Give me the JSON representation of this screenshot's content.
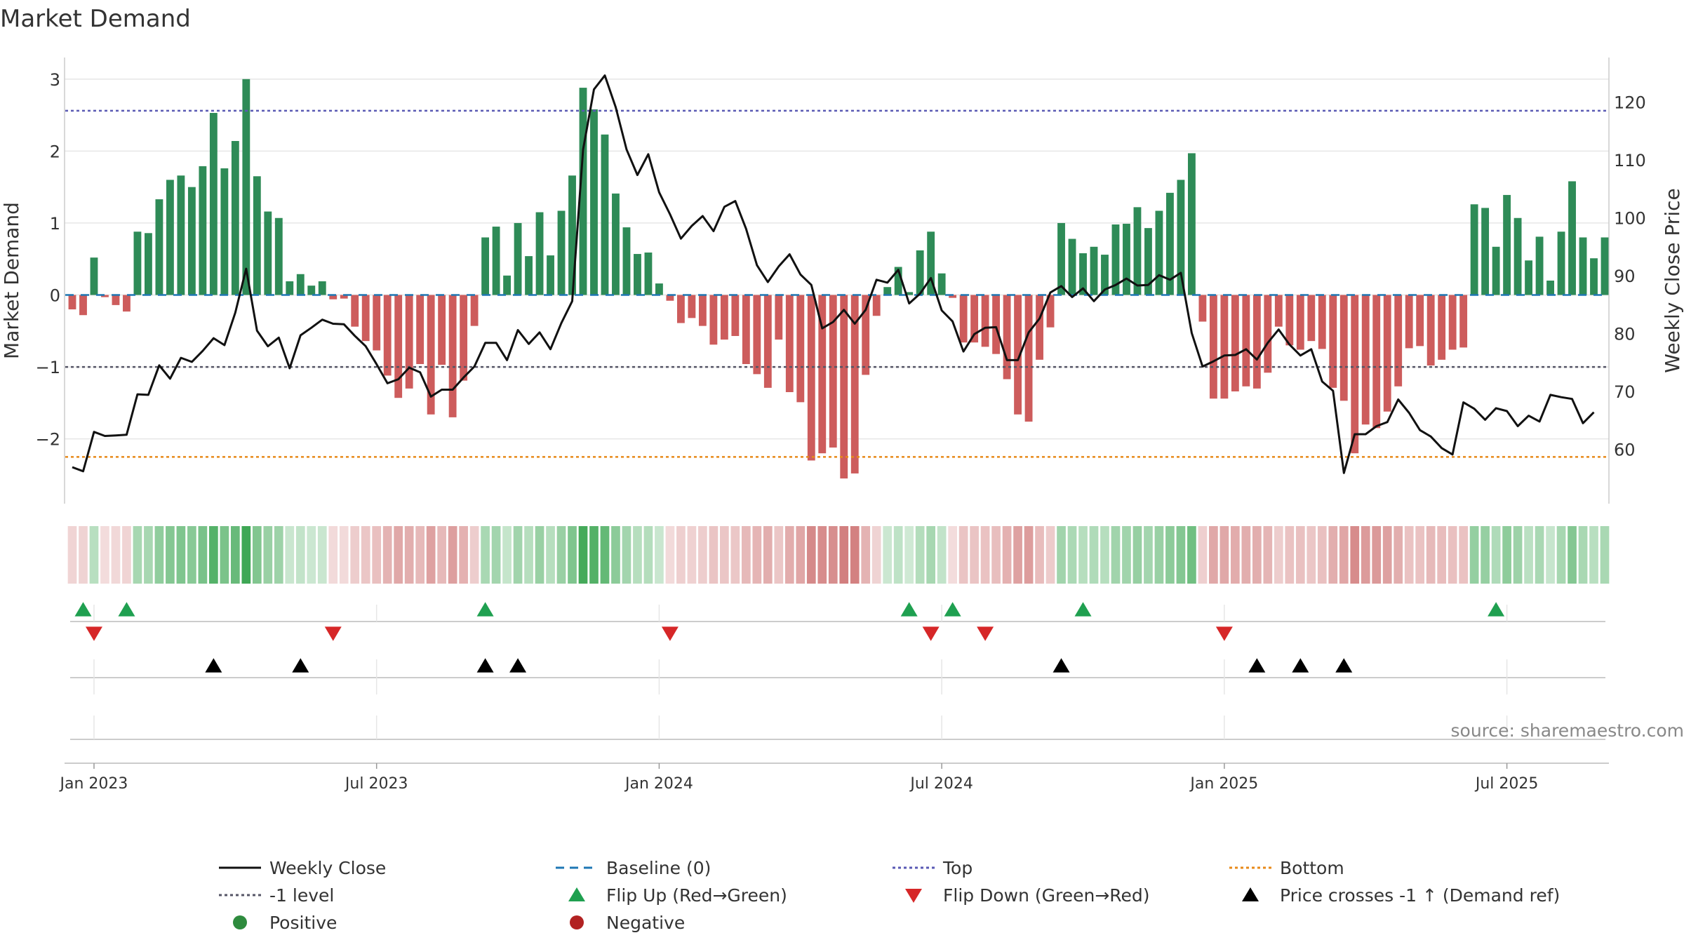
{
  "chart_data": {
    "type": "bar",
    "title": "Market Demand",
    "ylabel_left": "Market Demand",
    "ylabel_right": "Weekly Close Price",
    "source": "source: sharemaestro.com",
    "ylim_left": [
      -2.9,
      3.3
    ],
    "ylim_right": [
      50.6,
      127.7
    ],
    "yticks_left": [
      {
        "v": 3,
        "label": "3"
      },
      {
        "v": 2,
        "label": "2"
      },
      {
        "v": 1,
        "label": "1"
      },
      {
        "v": 0,
        "label": "0"
      },
      {
        "v": -1,
        "label": "−1"
      },
      {
        "v": -2,
        "label": "−2"
      }
    ],
    "yticks_right": [
      {
        "v": 120,
        "label": "120"
      },
      {
        "v": 110,
        "label": "110"
      },
      {
        "v": 100,
        "label": "100"
      },
      {
        "v": 90,
        "label": "90"
      },
      {
        "v": 80,
        "label": "80"
      },
      {
        "v": 70,
        "label": "70"
      },
      {
        "v": 60,
        "label": "60"
      }
    ],
    "xticks": [
      {
        "i": 2,
        "label": "Jan 2023"
      },
      {
        "i": 28,
        "label": "Jul 2023"
      },
      {
        "i": 54,
        "label": "Jan 2024"
      },
      {
        "i": 80,
        "label": "Jul 2024"
      },
      {
        "i": 106,
        "label": "Jan 2025"
      },
      {
        "i": 132,
        "label": "Jul 2025"
      }
    ],
    "reference_lines": {
      "baseline": 0,
      "top": 2.56,
      "minus_one": -1,
      "bottom": -2.25
    },
    "demand": [
      -0.2,
      -0.28,
      0.52,
      -0.03,
      -0.14,
      -0.23,
      0.88,
      0.86,
      1.33,
      1.6,
      1.66,
      1.5,
      1.79,
      2.53,
      1.76,
      2.14,
      3.0,
      1.65,
      1.16,
      1.07,
      0.19,
      0.29,
      0.13,
      0.19,
      -0.06,
      -0.05,
      -0.44,
      -0.64,
      -0.77,
      -1.12,
      -1.43,
      -1.3,
      -0.96,
      -1.66,
      -0.97,
      -1.7,
      -1.19,
      -0.43,
      0.8,
      0.95,
      0.27,
      1.0,
      0.54,
      1.15,
      0.55,
      1.17,
      1.66,
      2.88,
      2.58,
      2.23,
      1.41,
      0.94,
      0.57,
      0.59,
      0.16,
      -0.08,
      -0.39,
      -0.32,
      -0.43,
      -0.69,
      -0.62,
      -0.57,
      -0.96,
      -1.1,
      -1.29,
      -0.62,
      -1.35,
      -1.49,
      -2.3,
      -2.2,
      -2.12,
      -2.55,
      -2.48,
      -1.11,
      -0.29,
      0.11,
      0.39,
      0.04,
      0.62,
      0.88,
      0.3,
      -0.04,
      -0.66,
      -0.66,
      -0.72,
      -0.82,
      -1.17,
      -1.66,
      -1.76,
      -0.9,
      -0.45,
      1.0,
      0.78,
      0.58,
      0.67,
      0.56,
      0.98,
      0.99,
      1.22,
      0.93,
      1.17,
      1.42,
      1.6,
      1.97,
      -0.37,
      -1.44,
      -1.44,
      -1.34,
      -1.27,
      -1.3,
      -1.08,
      -0.44,
      -0.7,
      -0.76,
      -0.64,
      -0.75,
      -1.29,
      -1.47,
      -2.2,
      -1.8,
      -1.85,
      -1.62,
      -1.27,
      -0.74,
      -0.71,
      -0.98,
      -0.9,
      -0.76,
      -0.73,
      1.26,
      1.21,
      0.67,
      1.39,
      1.07,
      0.48,
      0.81,
      0.2,
      0.88,
      1.58,
      0.8,
      0.51,
      0.8
    ],
    "weekly_close": [
      56.9,
      56.2,
      63.0,
      62.3,
      62.4,
      62.5,
      69.5,
      69.4,
      74.5,
      72.2,
      75.8,
      75.1,
      77.0,
      79.2,
      78.0,
      83.6,
      91.2,
      80.5,
      77.8,
      79.3,
      74.0,
      79.7,
      81.0,
      82.4,
      81.7,
      81.6,
      79.6,
      77.8,
      74.7,
      71.4,
      72.1,
      74.1,
      73.3,
      69.1,
      70.3,
      70.3,
      72.4,
      74.3,
      78.4,
      78.4,
      75.4,
      80.6,
      78.2,
      80.2,
      77.3,
      81.8,
      85.6,
      111.8,
      122.2,
      124.6,
      119.1,
      111.8,
      107.4,
      111.0,
      104.4,
      100.6,
      96.4,
      98.6,
      100.3,
      97.7,
      101.9,
      102.9,
      98.1,
      91.8,
      88.9,
      91.6,
      93.7,
      90.2,
      88.4,
      80.9,
      82.0,
      84.1,
      81.7,
      84.1,
      89.3,
      88.8,
      91.0,
      85.2,
      86.9,
      89.6,
      84.0,
      82.1,
      76.9,
      79.9,
      81.0,
      81.1,
      75.4,
      75.4,
      80.2,
      82.6,
      87.1,
      88.2,
      86.3,
      87.8,
      85.6,
      87.6,
      88.4,
      89.5,
      88.3,
      88.4,
      90.1,
      89.3,
      90.5,
      80.1,
      74.3,
      75.2,
      76.2,
      76.3,
      77.3,
      75.5,
      78.4,
      80.7,
      78.1,
      76.2,
      77.3,
      71.7,
      70.1,
      55.9,
      62.6,
      62.6,
      64.0,
      64.7,
      68.6,
      66.3,
      63.3,
      62.2,
      60.2,
      59.1,
      68.1,
      67.0,
      65.1,
      67.1,
      66.6,
      64.0,
      65.8,
      64.8,
      69.4,
      69.0,
      68.7,
      64.5,
      66.4
    ],
    "flip_up": [
      1,
      5,
      38,
      77,
      81,
      93,
      131
    ],
    "flip_down": [
      2,
      24,
      55,
      79,
      84,
      106
    ],
    "price_cross": [
      13,
      21,
      38,
      41,
      91,
      109,
      113,
      117
    ],
    "legend": [
      {
        "label": "Weekly Close",
        "kind": "line-solid",
        "color": "#111111"
      },
      {
        "label": "Baseline (0)",
        "kind": "line-dash",
        "color": "#1f77b4"
      },
      {
        "label": "Top",
        "kind": "line-dot",
        "color": "#5a5ab4"
      },
      {
        "label": "Bottom",
        "kind": "line-dot",
        "color": "#e88a1a"
      },
      {
        "label": "-1 level",
        "kind": "line-dot",
        "color": "#555566"
      },
      {
        "label": "Flip Up (Red→Green)",
        "kind": "tri-up",
        "color": "#1fa050"
      },
      {
        "label": "Flip Down (Green→Red)",
        "kind": "tri-down",
        "color": "#d62728"
      },
      {
        "label": "Price crosses -1 ↑ (Demand ref)",
        "kind": "tri-up",
        "color": "#000000"
      },
      {
        "label": "Positive",
        "kind": "dot",
        "color": "#2e8b3e"
      },
      {
        "label": "Negative",
        "kind": "dot",
        "color": "#b22222"
      }
    ],
    "colors": {
      "positive": "#2e8b57",
      "negative": "#cd5c5c",
      "grid": "#e6e6e6",
      "axis": "#cccccc"
    }
  }
}
